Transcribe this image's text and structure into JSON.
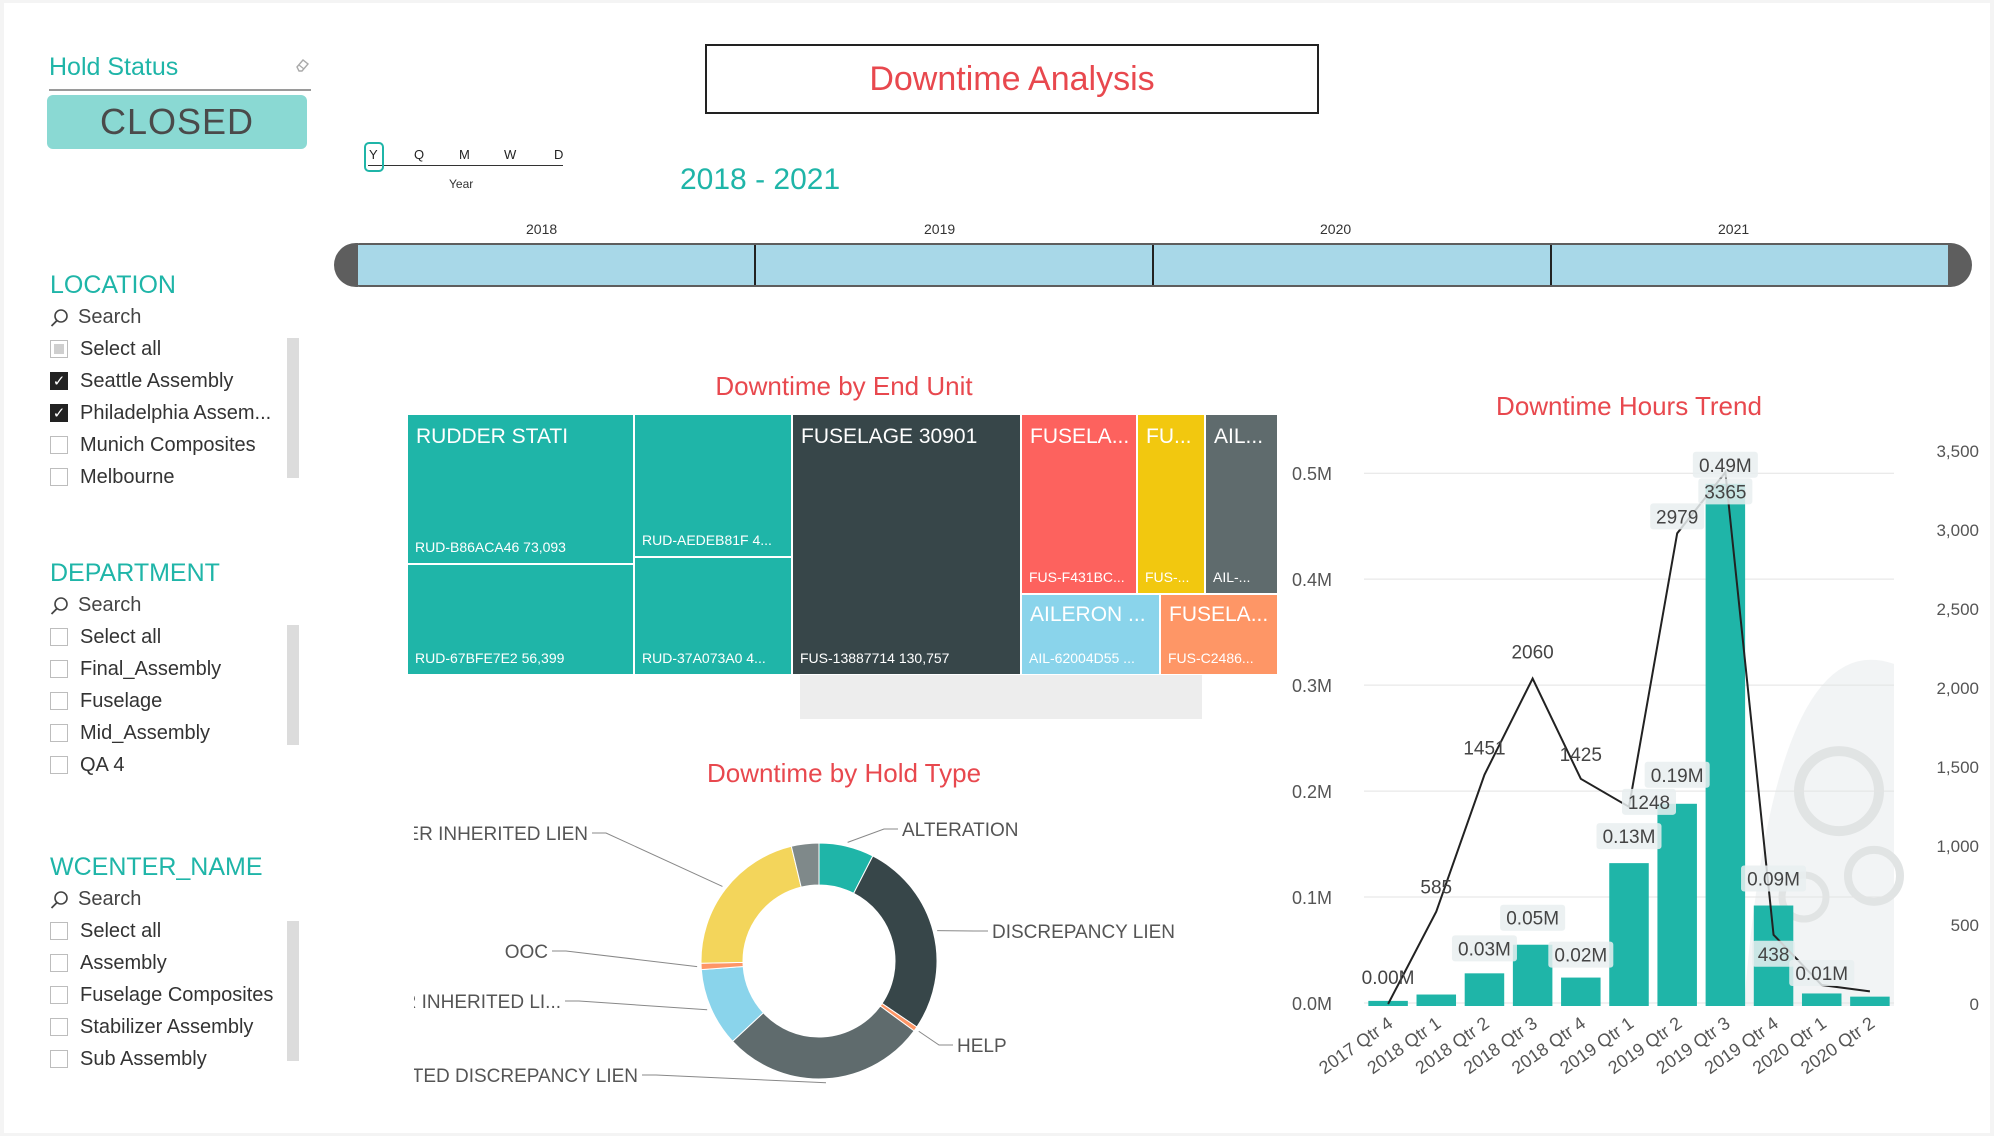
{
  "hold_status": {
    "title": "Hold Status",
    "value": "CLOSED"
  },
  "page_title": "Downtime Analysis",
  "timeline": {
    "levels": [
      "Y",
      "Q",
      "M",
      "W",
      "D"
    ],
    "level_label": "Year",
    "range_label": "2018 - 2021",
    "years": [
      "2018",
      "2019",
      "2020",
      "2021"
    ]
  },
  "location": {
    "title": "LOCATION",
    "search_placeholder": "Search",
    "items": [
      {
        "label": "Select all",
        "state": "partial"
      },
      {
        "label": "Seattle Assembly",
        "state": "checked"
      },
      {
        "label": "Philadelphia Assem...",
        "state": "checked"
      },
      {
        "label": "Munich Composites",
        "state": "unchecked"
      },
      {
        "label": "Melbourne",
        "state": "unchecked"
      }
    ]
  },
  "department": {
    "title": "DEPARTMENT",
    "search_placeholder": "Search",
    "items": [
      {
        "label": "Select all",
        "state": "unchecked"
      },
      {
        "label": "Final_Assembly",
        "state": "unchecked"
      },
      {
        "label": "Fuselage",
        "state": "unchecked"
      },
      {
        "label": "Mid_Assembly",
        "state": "unchecked"
      },
      {
        "label": "QA 4",
        "state": "unchecked"
      }
    ]
  },
  "wcenter": {
    "title": "WCENTER_NAME",
    "search_placeholder": "Search",
    "items": [
      {
        "label": "Select all",
        "state": "unchecked"
      },
      {
        "label": "Assembly",
        "state": "unchecked"
      },
      {
        "label": "Fuselage Composites",
        "state": "unchecked"
      },
      {
        "label": "Stabilizer Assembly",
        "state": "unchecked"
      },
      {
        "label": "Sub Assembly",
        "state": "unchecked"
      }
    ]
  },
  "colors": {
    "teal": "#1fb5a8",
    "dark": "#374649",
    "red": "#fd625e",
    "yellow": "#f2c80f",
    "grey": "#5f6b6d",
    "lightblue": "#8ad4eb",
    "orange": "#fe9666",
    "donut_yellow": "#f3d55b"
  },
  "chart_data": [
    {
      "type": "treemap",
      "title": "Downtime by End Unit",
      "groups": [
        {
          "name": "RUDDER STATI",
          "color": "#1fb5a8",
          "children": [
            {
              "label": "RUD-B86ACA46 73,093",
              "value": 73093
            },
            {
              "label": "RUD-67BFE7E2 56,399",
              "value": 56399
            },
            {
              "label": "RUD-AEDEB81F 4...",
              "value": null
            },
            {
              "label": "RUD-37A073A0 4...",
              "value": null
            }
          ]
        },
        {
          "name": "FUSELAGE 30901",
          "color": "#374649",
          "children": [
            {
              "label": "FUS-13887714 130,757",
              "value": 130757
            }
          ]
        },
        {
          "name": "FUSELA...",
          "color": "#fd625e",
          "children": [
            {
              "label": "FUS-F431BC...",
              "value": null
            }
          ]
        },
        {
          "name": "FU...",
          "color": "#f2c80f",
          "children": [
            {
              "label": "FUS-...",
              "value": null
            }
          ]
        },
        {
          "name": "AIL...",
          "color": "#5f6b6d",
          "children": [
            {
              "label": "AIL-...",
              "value": null
            }
          ]
        },
        {
          "name": "AILERON ...",
          "color": "#8ad4eb",
          "children": [
            {
              "label": "AIL-62004D55 ...",
              "value": null
            }
          ]
        },
        {
          "name": "FUSELA...",
          "color": "#fe9666",
          "children": [
            {
              "label": "FUS-C2486...",
              "value": null
            }
          ]
        }
      ]
    },
    {
      "type": "donut",
      "title": "Downtime by Hold Type",
      "slices": [
        {
          "label": "ALTERATION",
          "value": 7,
          "color": "#1fb5a8"
        },
        {
          "label": "DISCREPANCY LIEN",
          "value": 25,
          "color": "#374649"
        },
        {
          "label": "HELP",
          "value": 0.6,
          "color": "#fe9666"
        },
        {
          "label": "INHERITED DISCREPANCY LIEN",
          "value": 26,
          "color": "#5f6b6d"
        },
        {
          "label": "INSP ORDER INHERITED LI...",
          "value": 10,
          "color": "#8ad4eb"
        },
        {
          "label": "OOC",
          "value": 0.8,
          "color": "#fe9666"
        },
        {
          "label": "WORK ORDER INHERITED LIEN",
          "value": 20,
          "color": "#f3d55b"
        },
        {
          "label": "",
          "value": 3.5,
          "color": "#7f898a"
        }
      ]
    },
    {
      "type": "bar+line",
      "title": "Downtime Hours Trend",
      "categories": [
        "2017 Qtr 4",
        "2018 Qtr 1",
        "2018 Qtr 2",
        "2018 Qtr 3",
        "2018 Qtr 4",
        "2019 Qtr 1",
        "2019 Qtr 2",
        "2019 Qtr 3",
        "2019 Qtr 4",
        "2020 Qtr 1",
        "2020 Qtr 2"
      ],
      "bars": {
        "values": [
          0.002,
          0.008,
          0.028,
          0.055,
          0.024,
          0.132,
          0.188,
          0.49,
          0.092,
          0.009,
          0.006
        ],
        "labels": [
          "0.00M",
          "",
          "0.03M",
          "0.05M",
          "0.02M",
          "0.13M",
          "0.19M",
          "0.49M",
          "0.09M",
          "0.01M",
          ""
        ],
        "axis": {
          "min": 0,
          "max": 0.5,
          "ticks": [
            "0.0M",
            "0.1M",
            "0.2M",
            "0.3M",
            "0.4M",
            "0.5M"
          ]
        },
        "color": "#1fb5a8"
      },
      "line": {
        "values": [
          0,
          585,
          1451,
          2060,
          1425,
          1248,
          2979,
          3365,
          438,
          120,
          80
        ],
        "labels": [
          "",
          "585",
          "1451",
          "2060",
          "1425",
          "1248",
          "2979",
          "3365",
          "438",
          "",
          ""
        ],
        "axis": {
          "min": 0,
          "max": 3500,
          "ticks": [
            "0",
            "500",
            "1,000",
            "1,500",
            "2,000",
            "2,500",
            "3,000",
            "3,500"
          ]
        },
        "color": "#222222"
      }
    }
  ]
}
